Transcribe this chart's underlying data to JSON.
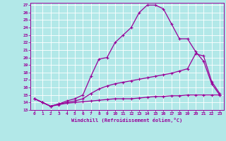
{
  "xlabel": "Windchill (Refroidissement éolien,°C)",
  "bg_color": "#b2e8e8",
  "grid_color": "#ffffff",
  "line_color": "#990099",
  "xlim": [
    -0.5,
    23.5
  ],
  "ylim": [
    13,
    27.3
  ],
  "xticks": [
    0,
    1,
    2,
    3,
    4,
    5,
    6,
    7,
    8,
    9,
    10,
    11,
    12,
    13,
    14,
    15,
    16,
    17,
    18,
    19,
    20,
    21,
    22,
    23
  ],
  "yticks": [
    13,
    14,
    15,
    16,
    17,
    18,
    19,
    20,
    21,
    22,
    23,
    24,
    25,
    26,
    27
  ],
  "line1_x": [
    0,
    1,
    2,
    3,
    4,
    5,
    6,
    7,
    8,
    9,
    10,
    11,
    12,
    13,
    14,
    15,
    16,
    17,
    18,
    19,
    20,
    21,
    22,
    23
  ],
  "line1_y": [
    14.5,
    14.0,
    13.5,
    13.8,
    14.2,
    14.5,
    15.0,
    17.5,
    19.8,
    20.0,
    22.0,
    23.0,
    24.0,
    26.0,
    27.0,
    27.0,
    26.5,
    24.5,
    22.5,
    22.5,
    20.8,
    19.5,
    16.5,
    15.0
  ],
  "line2_x": [
    0,
    1,
    2,
    3,
    4,
    5,
    6,
    7,
    8,
    9,
    10,
    11,
    12,
    13,
    14,
    15,
    16,
    17,
    18,
    19,
    20,
    21,
    22,
    23
  ],
  "line2_y": [
    14.5,
    14.0,
    13.5,
    13.8,
    14.0,
    14.2,
    14.5,
    15.2,
    15.8,
    16.2,
    16.5,
    16.7,
    16.9,
    17.1,
    17.3,
    17.5,
    17.7,
    17.9,
    18.2,
    18.5,
    20.5,
    20.2,
    16.8,
    15.2
  ],
  "line3_x": [
    0,
    1,
    2,
    3,
    4,
    5,
    6,
    7,
    8,
    9,
    10,
    11,
    12,
    13,
    14,
    15,
    16,
    17,
    18,
    19,
    20,
    21,
    22,
    23
  ],
  "line3_y": [
    14.5,
    14.0,
    13.5,
    13.7,
    13.9,
    14.0,
    14.1,
    14.2,
    14.3,
    14.4,
    14.5,
    14.5,
    14.5,
    14.6,
    14.7,
    14.8,
    14.8,
    14.9,
    14.9,
    15.0,
    15.0,
    15.0,
    15.0,
    15.0
  ]
}
